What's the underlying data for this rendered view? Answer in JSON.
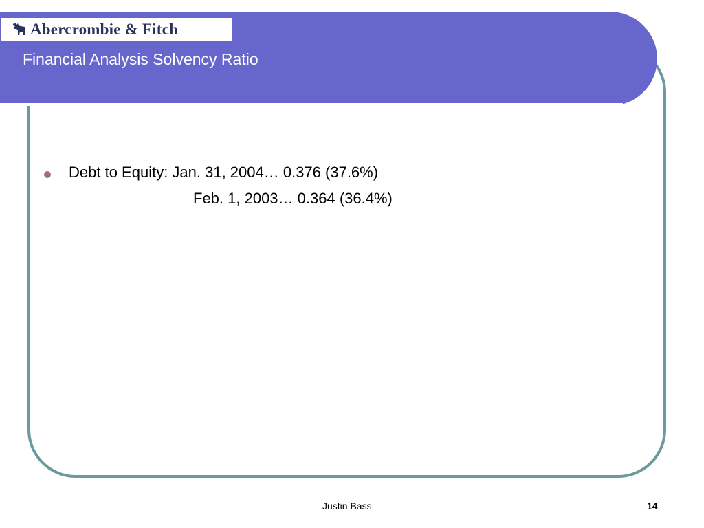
{
  "header": {
    "logo_text": "Abercrombie & Fitch",
    "title": "Financial Analysis Solvency Ratio",
    "band_color": "#6666cc"
  },
  "content": {
    "bullets": [
      {
        "line1": "Debt to Equity: Jan. 31, 2004…  0.376 (37.6%)",
        "line2": "Feb. 1, 2003… 0.364 (36.4%)"
      }
    ]
  },
  "footer": {
    "author": "Justin Bass",
    "page_number": "14"
  },
  "colors": {
    "frame": "#6a9a9a",
    "bullet": "#a07070",
    "logo_text": "#2a3360"
  }
}
